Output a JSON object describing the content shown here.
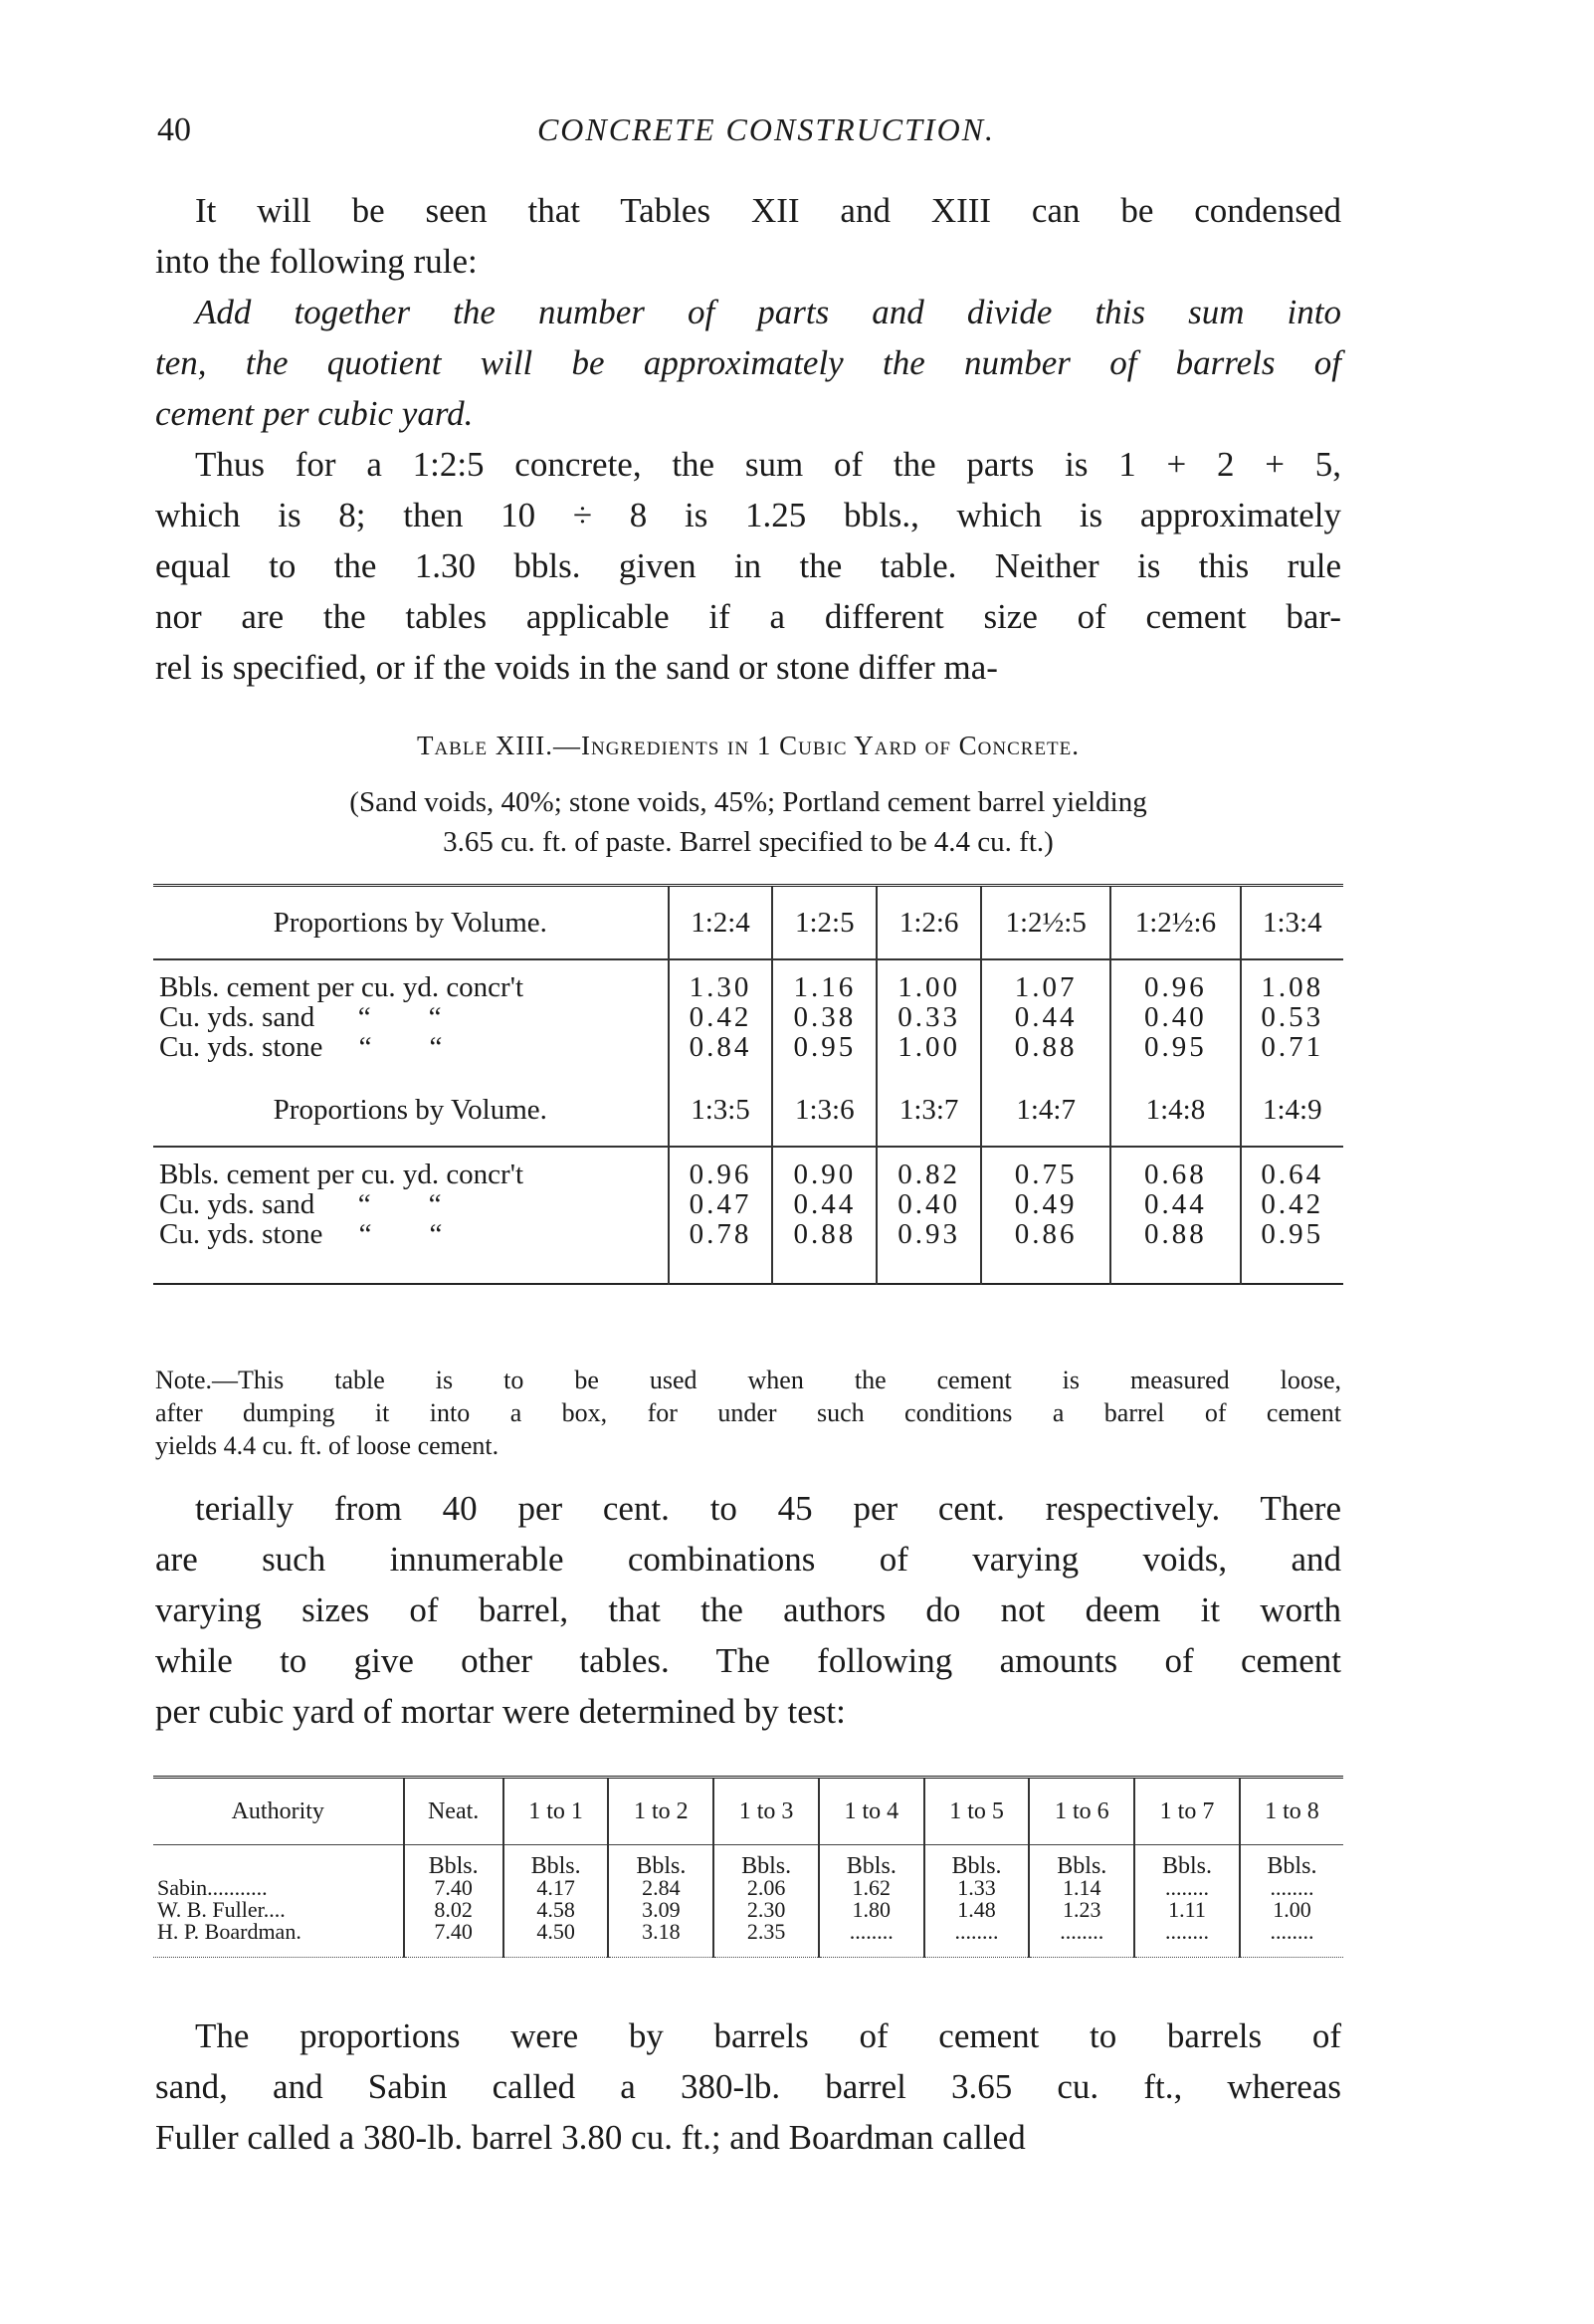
{
  "header": {
    "page_number": "40",
    "running_title": "CONCRETE CONSTRUCTION."
  },
  "para1": [
    "It will be seen that Tables XII and XIII can be condensed",
    "into the following rule:"
  ],
  "rule": [
    "Add together the number of parts and divide this sum into",
    "ten, the quotient will be approximately the number of barrels of",
    "cement per cubic yard."
  ],
  "para2": [
    "Thus for a 1:2:5 concrete, the sum of the parts is 1 + 2 + 5,",
    "which is 8; then 10 ÷ 8 is 1.25 bbls., which is approximately",
    "equal to the 1.30 bbls. given in the table. Neither is this rule",
    "nor are the tables applicable if a different size of cement bar-",
    "rel is specified, or if the voids in the sand or stone differ ma-"
  ],
  "table13": {
    "caption": "Table XIII.—Ingredients in 1 Cubic Yard of Concrete.",
    "subcaption": [
      "(Sand voids, 40%; stone voids, 45%; Portland cement barrel yielding",
      "3.65 cu. ft. of paste. Barrel specified to be 4.4 cu. ft.)"
    ],
    "row_labels": [
      "Bbls. cement per cu. yd. concr't",
      "Cu. yds. sand      “        “",
      "Cu. yds. stone     “        “"
    ],
    "groups": [
      {
        "header": "Proportions by Volume.",
        "proportions": [
          "1:2:4",
          "1:2:5",
          "1:2:6",
          "1:2½:5",
          "1:2½:6",
          "1:3:4"
        ],
        "cement": [
          "1.30",
          "1.16",
          "1.00",
          "1.07",
          "0.96",
          "1.08"
        ],
        "sand": [
          "0.42",
          "0.38",
          "0.33",
          "0.44",
          "0.40",
          "0.53"
        ],
        "stone": [
          "0.84",
          "0.95",
          "1.00",
          "0.88",
          "0.95",
          "0.71"
        ]
      },
      {
        "header": "Proportions by Volume.",
        "proportions": [
          "1:3:5",
          "1:3:6",
          "1:3:7",
          "1:4:7",
          "1:4:8",
          "1:4:9"
        ],
        "cement": [
          "0.96",
          "0.90",
          "0.82",
          "0.75",
          "0.68",
          "0.64"
        ],
        "sand": [
          "0.47",
          "0.44",
          "0.40",
          "0.49",
          "0.44",
          "0.42"
        ],
        "stone": [
          "0.78",
          "0.88",
          "0.93",
          "0.86",
          "0.88",
          "0.95"
        ]
      }
    ],
    "note": [
      "Note.—This table is to be used when the cement is measured loose,",
      "after dumping it into a box, for under such conditions a barrel of cement",
      "yields 4.4 cu. ft. of loose cement."
    ]
  },
  "para3": [
    "terially from 40 per cent. to 45 per cent. respectively. There",
    "are such innumerable combinations of varying voids, and",
    "varying sizes of barrel, that the authors do not deem it worth",
    "while to give other tables. The following amounts of cement",
    "per cubic yard of mortar were determined by test:"
  ],
  "mortar_table": {
    "headers": [
      "Authority",
      "Neat.",
      "1 to 1",
      "1 to 2",
      "1 to 3",
      "1 to 4",
      "1 to 5",
      "1 to 6",
      "1 to 7",
      "1 to 8"
    ],
    "unit": "Bbls.",
    "rows": [
      {
        "authority": "Sabin...........",
        "values": [
          "7.40",
          "4.17",
          "2.84",
          "2.06",
          "1.62",
          "1.33",
          "1.14",
          "........",
          "........"
        ]
      },
      {
        "authority": "W. B. Fuller....",
        "values": [
          "8.02",
          "4.58",
          "3.09",
          "2.30",
          "1.80",
          "1.48",
          "1.23",
          "1.11",
          "1.00"
        ]
      },
      {
        "authority": "H. P. Boardman.",
        "values": [
          "7.40",
          "4.50",
          "3.18",
          "2.35",
          "........",
          "........",
          "........",
          "........",
          "........"
        ]
      }
    ]
  },
  "para4": [
    "The proportions were by barrels of cement to barrels of",
    "sand, and Sabin called a 380-lb. barrel 3.65 cu. ft., whereas",
    "Fuller called a 380-lb. barrel 3.80 cu. ft.; and Boardman called"
  ]
}
